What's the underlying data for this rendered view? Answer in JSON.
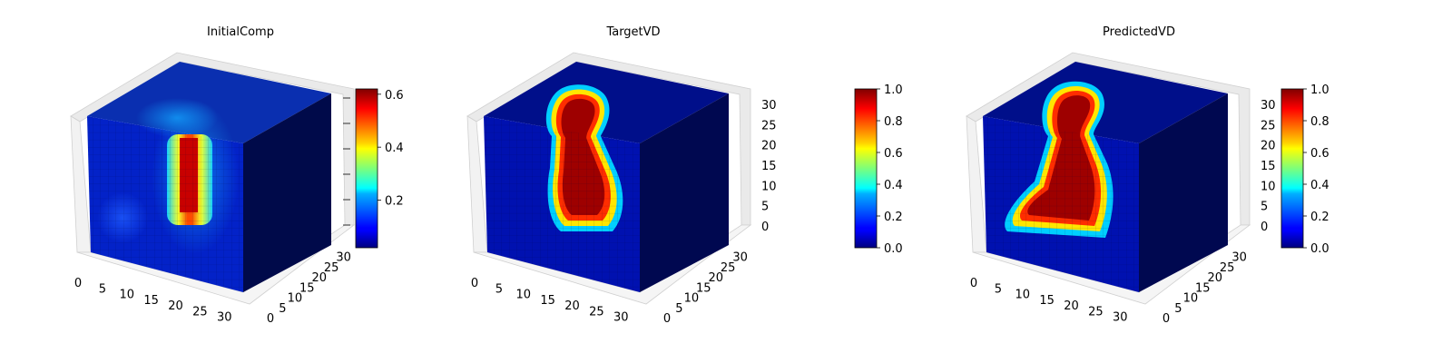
{
  "chart_data": [
    {
      "type": "heatmap",
      "subtype": "3d-voxel",
      "title": "InitialComp",
      "axis_ticks": {
        "x": [
          0,
          5,
          10,
          15,
          20,
          25,
          30
        ],
        "y": [
          0,
          5,
          10,
          15,
          20,
          25,
          30
        ],
        "z": []
      },
      "colorbar": {
        "colormap": "jet",
        "range": [
          0.02,
          0.62
        ],
        "ticks": [
          0.2,
          0.4,
          0.6
        ]
      },
      "feature": "vertical bar, max value near 0.6"
    },
    {
      "type": "heatmap",
      "subtype": "3d-voxel",
      "title": "TargetVD",
      "axis_ticks": {
        "x": [
          0,
          5,
          10,
          15,
          20,
          25,
          30
        ],
        "y": [
          0,
          5,
          10,
          15,
          20,
          25,
          30
        ],
        "z": [
          0,
          5,
          10,
          15,
          20,
          25,
          30
        ]
      },
      "colorbar": {
        "colormap": "jet",
        "range": [
          0.0,
          1.0
        ],
        "ticks": [
          0.0,
          0.2,
          0.4,
          0.6,
          0.8,
          1.0
        ]
      },
      "feature": "keyhole shape, values 0 to 1"
    },
    {
      "type": "heatmap",
      "subtype": "3d-voxel",
      "title": "PredictedVD",
      "axis_ticks": {
        "x": [
          0,
          5,
          10,
          15,
          20,
          25,
          30
        ],
        "y": [
          0,
          5,
          10,
          15,
          20,
          25,
          30
        ],
        "z": [
          0,
          5,
          10,
          15,
          20,
          25,
          30
        ]
      },
      "colorbar": {
        "colormap": "jet",
        "range": [
          0.0,
          1.0
        ],
        "ticks": [
          0.0,
          0.2,
          0.4,
          0.6,
          0.8,
          1.0
        ]
      },
      "feature": "wider keyhole shape, values 0 to 1"
    }
  ]
}
